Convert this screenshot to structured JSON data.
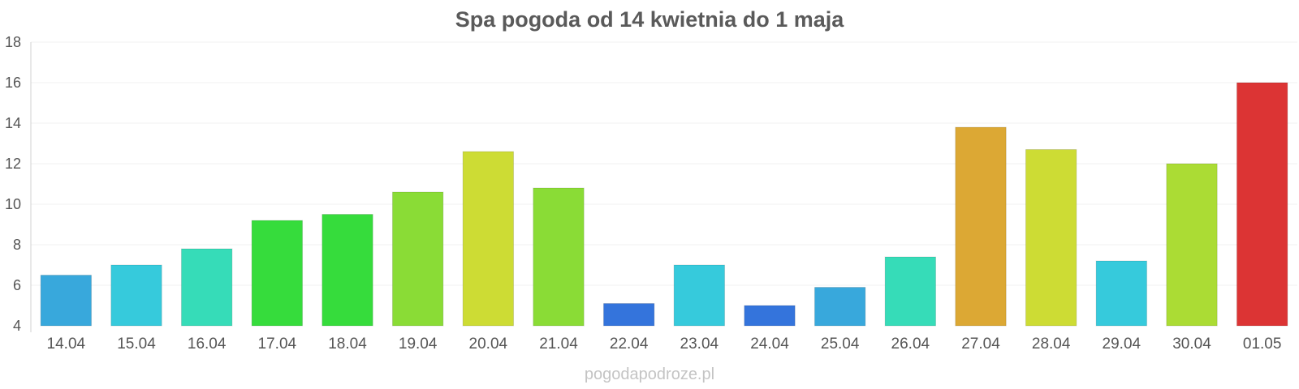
{
  "chart_data": {
    "type": "bar",
    "title": "Spa pogoda od 14 kwietnia do 1 maja",
    "xlabel": "",
    "ylabel": "",
    "ylim": [
      4,
      18
    ],
    "yticks": [
      4,
      6,
      8,
      10,
      12,
      14,
      16,
      18
    ],
    "grid": true,
    "legend": "none",
    "categories": [
      "14.04",
      "15.04",
      "16.04",
      "17.04",
      "18.04",
      "19.04",
      "20.04",
      "21.04",
      "22.04",
      "23.04",
      "24.04",
      "25.04",
      "26.04",
      "27.04",
      "28.04",
      "29.04",
      "30.04",
      "01.05"
    ],
    "values": [
      6.5,
      7.0,
      7.8,
      9.2,
      9.5,
      10.6,
      12.6,
      10.8,
      5.1,
      7.0,
      5.0,
      5.9,
      7.4,
      13.8,
      12.7,
      7.2,
      12.0,
      16.0
    ],
    "colors": [
      "#38a8dc",
      "#36cadc",
      "#36dcb8",
      "#36dc3c",
      "#36dc3c",
      "#8adc36",
      "#cddc34",
      "#8adc36",
      "#3474dc",
      "#36cadc",
      "#3474dc",
      "#38a8dc",
      "#36dcb8",
      "#dca834",
      "#cddc34",
      "#36cadc",
      "#abdc34",
      "#dc3434"
    ]
  },
  "footer": {
    "source": "pogodapodroze.pl"
  }
}
